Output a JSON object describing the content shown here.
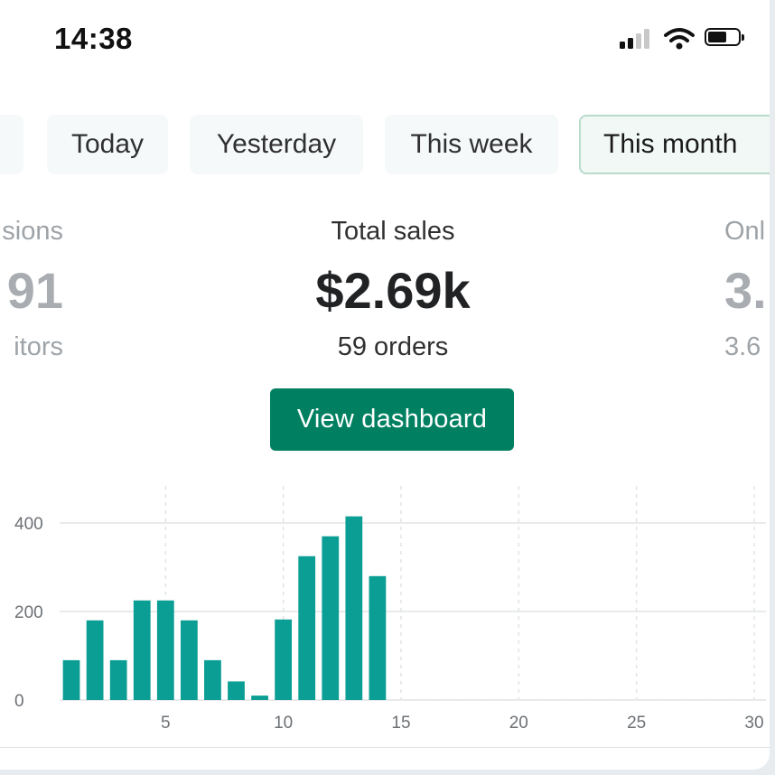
{
  "status_bar": {
    "time": "14:38"
  },
  "tabs": [
    {
      "label": ""
    },
    {
      "label": "Today"
    },
    {
      "label": "Yesterday"
    },
    {
      "label": "This week"
    },
    {
      "label": "This month",
      "active": true
    }
  ],
  "metrics": {
    "left": {
      "label": "sions",
      "value": "91",
      "sub": "itors"
    },
    "center": {
      "label": "Total sales",
      "value": "$2.69k",
      "sub": "59 orders"
    },
    "right": {
      "label": "Onl",
      "value": "3.",
      "sub": "3.6"
    }
  },
  "view_dashboard": {
    "label": "View dashboard"
  },
  "colors": {
    "accent": "#008060",
    "bar": "#0a9e94"
  },
  "chart_data": {
    "type": "bar",
    "x": [
      1,
      2,
      3,
      4,
      5,
      6,
      7,
      8,
      9,
      10,
      11,
      12,
      13,
      14,
      15,
      16,
      17,
      18,
      19,
      20,
      21,
      22,
      23,
      24,
      25,
      26,
      27,
      28,
      29,
      30
    ],
    "values": [
      90,
      180,
      90,
      225,
      225,
      180,
      90,
      42,
      10,
      182,
      325,
      370,
      415,
      280,
      0,
      0,
      0,
      0,
      0,
      0,
      0,
      0,
      0,
      0,
      0,
      0,
      0,
      0,
      0,
      0
    ],
    "x_ticks": [
      5,
      10,
      15,
      20,
      25,
      30
    ],
    "y_ticks": [
      0,
      200,
      400
    ],
    "ylim": [
      0,
      500
    ],
    "xlim": [
      0.5,
      30.5
    ],
    "grid": true
  }
}
